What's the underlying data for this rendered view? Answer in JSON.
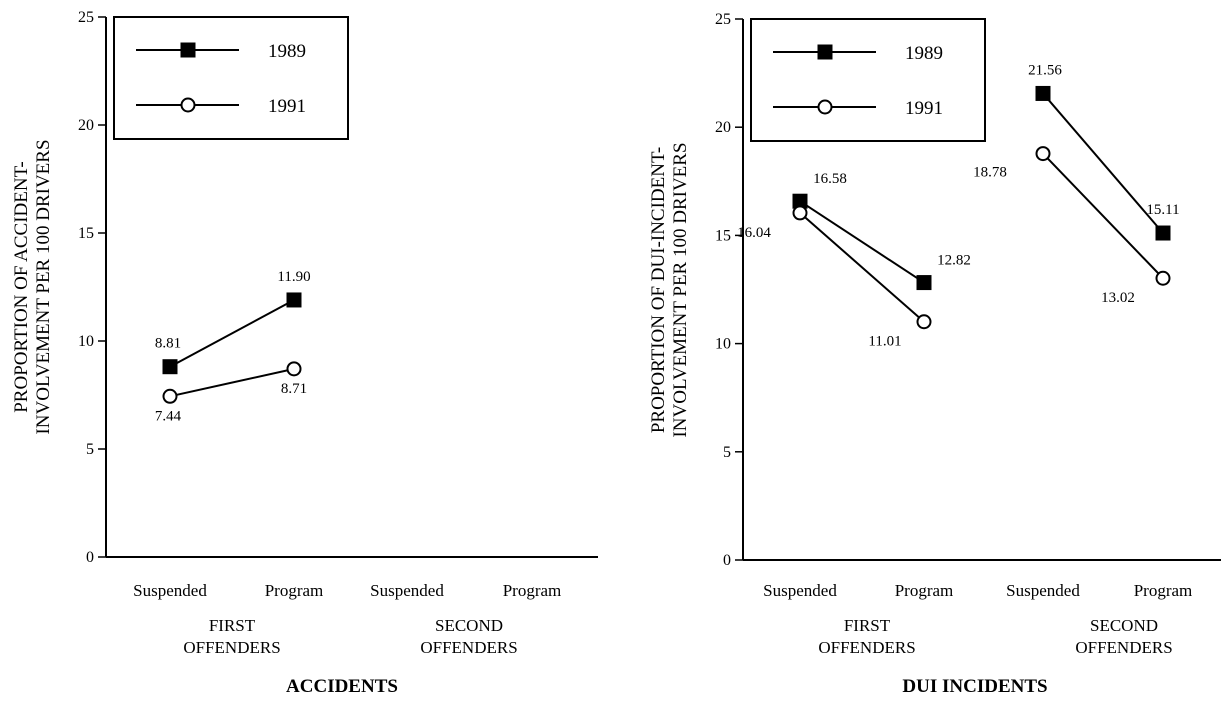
{
  "chart_data": [
    {
      "type": "line",
      "title": "ACCIDENTS",
      "ylabel": [
        "PROPORTION OF ACCIDENT-",
        "INVOLVEMENT PER 100 DRIVERS"
      ],
      "ylim": [
        0,
        25
      ],
      "yticks": [
        "0",
        "5",
        "10",
        "15",
        "20",
        "25"
      ],
      "categories": [
        "Suspended",
        "Program",
        "Suspended",
        "Program"
      ],
      "groups": [
        [
          "FIRST",
          "OFFENDERS"
        ],
        [
          "SECOND",
          "OFFENDERS"
        ]
      ],
      "legend_position": "top-left",
      "series": [
        {
          "name": "1989",
          "marker": "filled-square",
          "values": [
            8.81,
            11.9,
            null,
            null
          ],
          "labels": [
            "8.81",
            "11.90",
            "",
            ""
          ]
        },
        {
          "name": "1991",
          "marker": "open-circle",
          "values": [
            7.44,
            8.71,
            null,
            null
          ],
          "labels": [
            "7.44",
            "8.71",
            "",
            ""
          ]
        }
      ]
    },
    {
      "type": "line",
      "title": "DUI INCIDENTS",
      "ylabel": [
        "PROPORTION OF DUI-INCIDENT-",
        "INVOLVEMENT PER 100 DRIVERS"
      ],
      "ylim": [
        0,
        25
      ],
      "yticks": [
        "0",
        "5",
        "10",
        "15",
        "20",
        "25"
      ],
      "categories": [
        "Suspended",
        "Program",
        "Suspended",
        "Program"
      ],
      "groups": [
        [
          "FIRST",
          "OFFENDERS"
        ],
        [
          "SECOND",
          "OFFENDERS"
        ]
      ],
      "legend_position": "top-left",
      "series": [
        {
          "name": "1989",
          "marker": "filled-square",
          "values": [
            16.58,
            12.82,
            21.56,
            15.11
          ],
          "labels": [
            "16.58",
            "12.82",
            "21.56",
            "15.11"
          ]
        },
        {
          "name": "1991",
          "marker": "open-circle",
          "values": [
            16.04,
            11.01,
            18.78,
            13.02
          ],
          "labels": [
            "16.04",
            "11.01",
            "18.78",
            "13.02"
          ]
        }
      ]
    }
  ]
}
